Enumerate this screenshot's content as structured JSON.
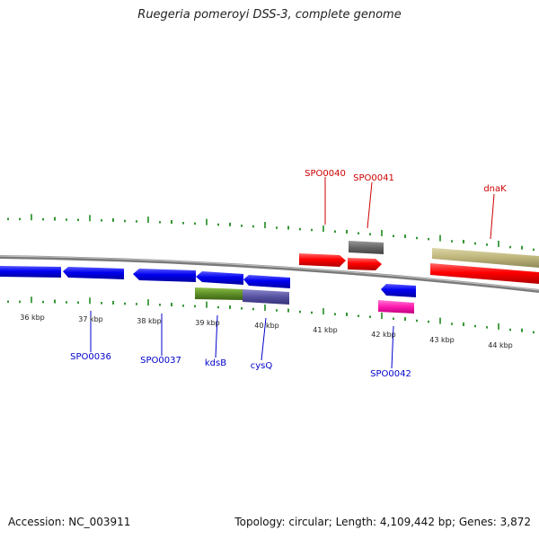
{
  "title": "Ruegeria pomeroyi DSS-3, complete genome",
  "footer": {
    "accession": "Accession: NC_003911",
    "summary": "Topology: circular; Length: 4,109,442 bp; Genes: 3,872"
  },
  "colors": {
    "forward_gene": "#ff0000",
    "reverse_gene": "#0000ee",
    "label_forward": "#cc0000",
    "label_reverse": "#0000cc",
    "tick": "#1e8a1e",
    "backbone": "#888888"
  },
  "kbp_labels": [
    "36 kbp",
    "37 kbp",
    "38 kbp",
    "39 kbp",
    "40 kbp",
    "41 kbp",
    "42 kbp",
    "43 kbp",
    "44 kbp"
  ],
  "gene_labels": {
    "top": [
      "SPO0040",
      "SPO0041",
      "dnaK"
    ],
    "bottom": [
      "SPO0036",
      "SPO0037",
      "kdsB",
      "cysQ",
      "SPO0042"
    ]
  }
}
